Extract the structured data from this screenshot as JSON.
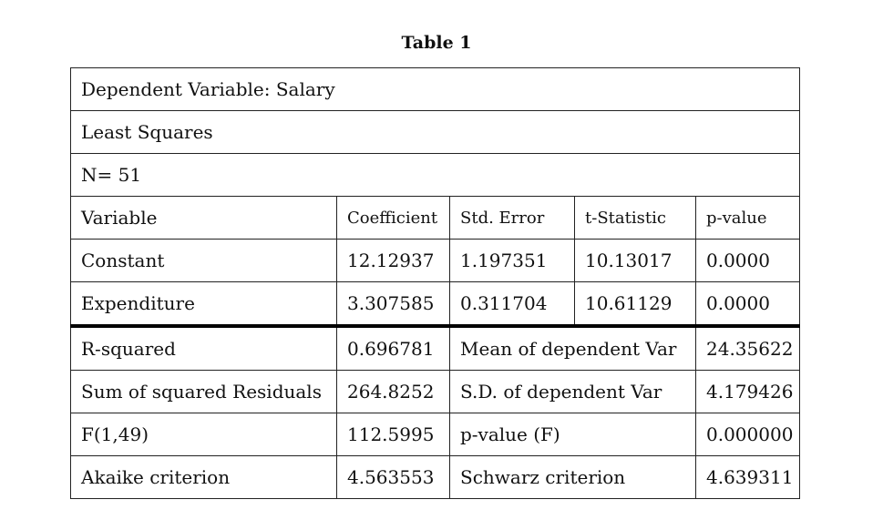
{
  "title": "Table 1",
  "header_rows": {
    "dependent": "Dependent Variable: Salary",
    "method": "Least Squares",
    "n": "N= 51"
  },
  "columns": [
    "Variable",
    "Coefficient",
    "Std. Error",
    "t-Statistic",
    "p-value"
  ],
  "coefficients": [
    {
      "variable": "Constant",
      "coefficient": "12.12937",
      "std_error": "1.197351",
      "t_stat": "10.13017",
      "p_value": "0.0000"
    },
    {
      "variable": "Expenditure",
      "coefficient": "3.307585",
      "std_error": "0.311704",
      "t_stat": "10.61129",
      "p_value": "0.0000"
    }
  ],
  "stats": [
    {
      "label": "R-squared",
      "value": "0.696781",
      "label2": "Mean of dependent Var",
      "value2": "24.35622"
    },
    {
      "label": "Sum of squared Residuals",
      "value": "264.8252",
      "label2": "S.D. of dependent Var",
      "value2": "4.179426"
    },
    {
      "label": "F(1,49)",
      "value": "112.5995",
      "label2": "p-value (F)",
      "value2": "0.000000"
    },
    {
      "label": "Akaike criterion",
      "value": "4.563553",
      "label2": "Schwarz criterion",
      "value2": "4.639311"
    }
  ]
}
